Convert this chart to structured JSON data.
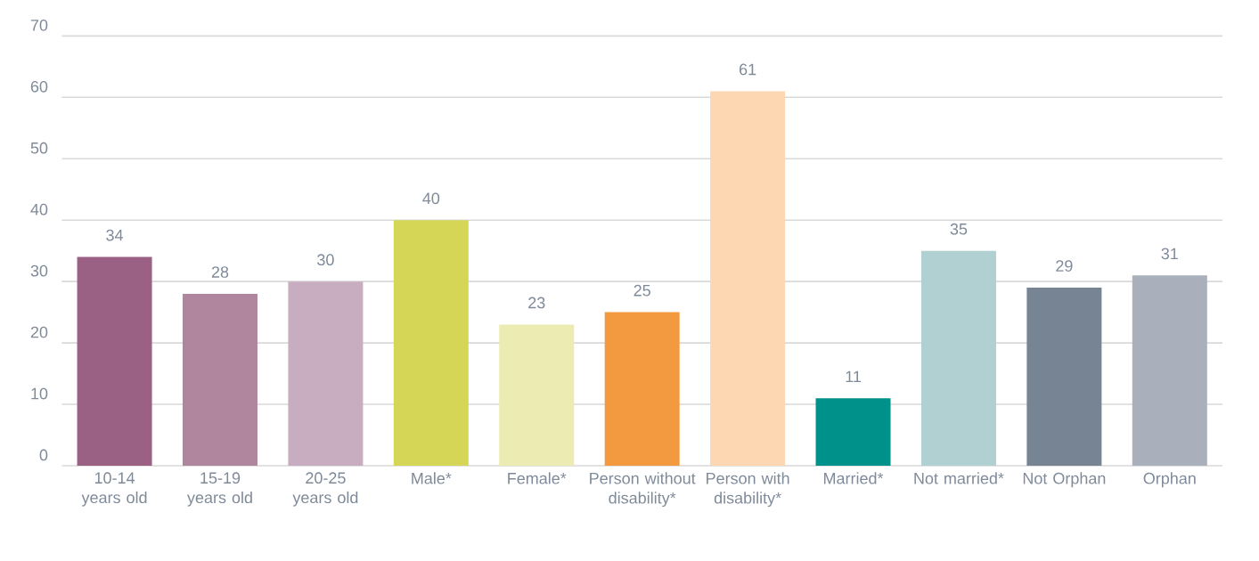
{
  "chart_data": {
    "type": "bar",
    "categories": [
      "10-14 years old",
      "15-19 years old",
      "20-25 years old",
      "Male*",
      "Female*",
      "Person without disability*",
      "Person with disability*",
      "Married*",
      "Not married*",
      "Not Orphan",
      "Orphan"
    ],
    "values": [
      34,
      28,
      30,
      40,
      23,
      25,
      61,
      11,
      35,
      29,
      31
    ],
    "colors": [
      "#9a6184",
      "#b0869e",
      "#c8adc0",
      "#d5d655",
      "#ebebb2",
      "#f39a41",
      "#fcd7b1",
      "#00918a",
      "#b0d0d1",
      "#778494",
      "#a9b0bb"
    ],
    "ylim": [
      0,
      70
    ],
    "yticks": [
      0,
      10,
      20,
      30,
      40,
      50,
      60,
      70
    ],
    "grid": "y",
    "data_labels": true
  }
}
